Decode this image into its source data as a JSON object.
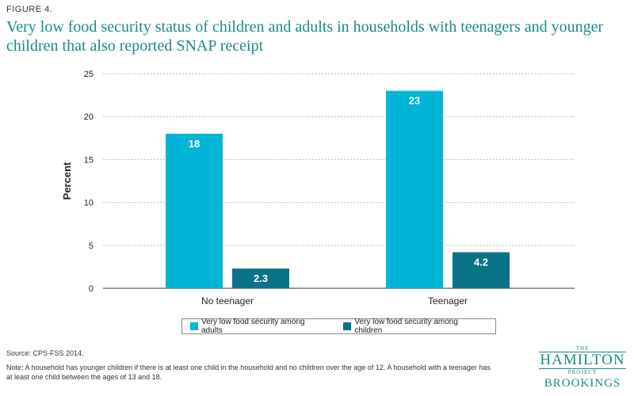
{
  "figure_label": "FIGURE 4.",
  "title": "Very low food security status of children and adults in households with teenagers and younger children that also reported SNAP receipt",
  "colors": {
    "adults": "#00b5d6",
    "children": "#0b7388",
    "accent": "#1c8a84",
    "grid": "#bdbdbd"
  },
  "chart_data": {
    "type": "bar",
    "title": "Very low food security status of children and adults in households with teenagers and younger children that also reported SNAP receipt",
    "categories": [
      "No teenager",
      "Teenager"
    ],
    "series": [
      {
        "name": "Very low food security among adults",
        "values": [
          18,
          23
        ],
        "labels": [
          "18",
          "23"
        ]
      },
      {
        "name": "Very low food security among children",
        "values": [
          2.3,
          4.2
        ],
        "labels": [
          "2.3",
          "4.2"
        ]
      }
    ],
    "xlabel": "",
    "ylabel": "Percent",
    "ylim": [
      0,
      25
    ],
    "yticks": [
      0,
      5,
      10,
      15,
      20,
      25
    ],
    "ytick_labels": [
      "0",
      "5",
      "10",
      "15",
      "20",
      "25"
    ],
    "grid": true,
    "legend_position": "bottom"
  },
  "source": "Source: CPS-FSS 2014.",
  "note": "Note: A household has younger children if there is at least one child in the household and no children over the age of 12. A household with a teenager has at least one child between the ages of 13 and 18.",
  "logo": {
    "the": "THE",
    "hamilton": "HAMILTON",
    "project": "PROJECT",
    "brookings": "BROOKINGS"
  }
}
